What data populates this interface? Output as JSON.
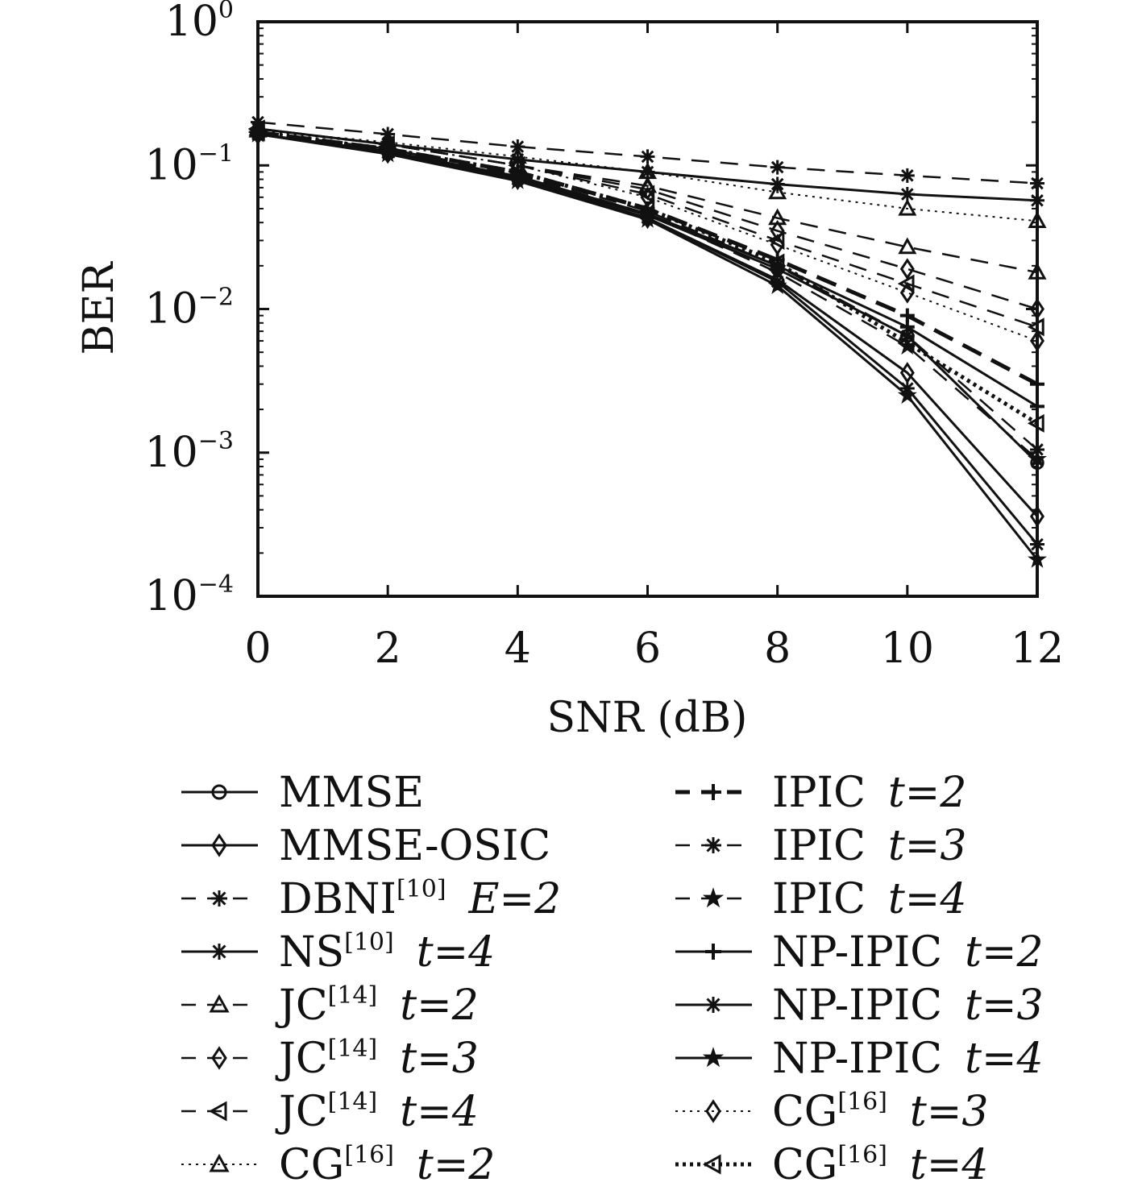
{
  "chart_data": {
    "type": "line",
    "xlabel": "SNR (dB)",
    "ylabel": "BER",
    "yscale": "log",
    "xlim": [
      0,
      12
    ],
    "ylim": [
      0.0001,
      1
    ],
    "x_ticks": [
      "0",
      "2",
      "4",
      "6",
      "8",
      "10",
      "12"
    ],
    "y_ticks": [
      {
        "base": "10",
        "exp": "0"
      },
      {
        "base": "10",
        "exp": "−1"
      },
      {
        "base": "10",
        "exp": "−2"
      },
      {
        "base": "10",
        "exp": "−3"
      },
      {
        "base": "10",
        "exp": "−4"
      }
    ],
    "grid": false,
    "legend_position": "below",
    "x": [
      0,
      2,
      4,
      6,
      8,
      10,
      12
    ],
    "series": [
      {
        "key": "mmse",
        "label": {
          "main": "MMSE",
          "sup": "",
          "param": ""
        },
        "line": "solid",
        "marker": "circle",
        "values": [
          0.165,
          0.125,
          0.082,
          0.045,
          0.019,
          0.0065,
          0.00085
        ]
      },
      {
        "key": "mmse-osic",
        "label": {
          "main": "MMSE-OSIC",
          "sup": "",
          "param": ""
        },
        "line": "solid",
        "marker": "diamond",
        "values": [
          0.165,
          0.122,
          0.08,
          0.043,
          0.016,
          0.0036,
          0.00036
        ]
      },
      {
        "key": "dbni",
        "label": {
          "main": "DBNI",
          "sup": "[10]",
          "param": "E=2"
        },
        "line": "dashed",
        "marker": "asterisk",
        "values": [
          0.2,
          0.165,
          0.135,
          0.115,
          0.097,
          0.085,
          0.075
        ]
      },
      {
        "key": "ns",
        "label": {
          "main": "NS",
          "sup": "[10]",
          "param": "t=4"
        },
        "line": "solid",
        "marker": "asterisk",
        "values": [
          0.18,
          0.14,
          0.11,
          0.09,
          0.074,
          0.063,
          0.057
        ]
      },
      {
        "key": "jc-t2",
        "label": {
          "main": "JC",
          "sup": "[14]",
          "param": "t=2"
        },
        "line": "dashed",
        "marker": "triangle-up",
        "values": [
          0.18,
          0.14,
          0.1,
          0.072,
          0.043,
          0.027,
          0.018
        ]
      },
      {
        "key": "jc-t3",
        "label": {
          "main": "JC",
          "sup": "[14]",
          "param": "t=3"
        },
        "line": "dashed",
        "marker": "diamond",
        "values": [
          0.18,
          0.14,
          0.1,
          0.068,
          0.035,
          0.019,
          0.01
        ]
      },
      {
        "key": "jc-t4",
        "label": {
          "main": "JC",
          "sup": "[14]",
          "param": "t=4"
        },
        "line": "dashed",
        "marker": "triangle-left",
        "values": [
          0.18,
          0.14,
          0.1,
          0.063,
          0.03,
          0.015,
          0.0075
        ]
      },
      {
        "key": "cg-t2",
        "label": {
          "main": "CG",
          "sup": "[16]",
          "param": "t=2"
        },
        "line": "dotted",
        "marker": "triangle-up",
        "values": [
          0.175,
          0.145,
          0.115,
          0.09,
          0.065,
          0.05,
          0.041
        ]
      },
      {
        "key": "ipic-t2",
        "label": {
          "main": "IPIC",
          "sup": "",
          "param": "t=2"
        },
        "line": "bold-dashed",
        "marker": "plus",
        "values": [
          0.17,
          0.13,
          0.09,
          0.05,
          0.022,
          0.009,
          0.003
        ]
      },
      {
        "key": "ipic-t3",
        "label": {
          "main": "IPIC",
          "sup": "",
          "param": "t=3"
        },
        "line": "dashed",
        "marker": "asterisk",
        "values": [
          0.17,
          0.13,
          0.088,
          0.048,
          0.02,
          0.0065,
          0.00105
        ]
      },
      {
        "key": "ipic-t4",
        "label": {
          "main": "IPIC",
          "sup": "",
          "param": "t=4"
        },
        "line": "dashed",
        "marker": "star",
        "values": [
          0.17,
          0.13,
          0.086,
          0.046,
          0.018,
          0.0055,
          0.0009
        ]
      },
      {
        "key": "np-ipic-t2",
        "label": {
          "main": "NP-IPIC",
          "sup": "",
          "param": "t=2"
        },
        "line": "solid",
        "marker": "plus",
        "values": [
          0.165,
          0.125,
          0.084,
          0.046,
          0.02,
          0.0075,
          0.0021
        ]
      },
      {
        "key": "np-ipic-t3",
        "label": {
          "main": "NP-IPIC",
          "sup": "",
          "param": "t=3"
        },
        "line": "solid",
        "marker": "asterisk",
        "values": [
          0.165,
          0.122,
          0.08,
          0.043,
          0.0155,
          0.0028,
          0.00023
        ]
      },
      {
        "key": "np-ipic-t4",
        "label": {
          "main": "NP-IPIC",
          "sup": "",
          "param": "t=4"
        },
        "line": "solid",
        "marker": "star",
        "values": [
          0.165,
          0.12,
          0.078,
          0.042,
          0.0145,
          0.0025,
          0.00018
        ]
      },
      {
        "key": "cg-t3",
        "label": {
          "main": "CG",
          "sup": "[16]",
          "param": "t=3"
        },
        "line": "dotted",
        "marker": "diamond",
        "values": [
          0.175,
          0.14,
          0.1,
          0.06,
          0.028,
          0.013,
          0.006
        ]
      },
      {
        "key": "cg-t4",
        "label": {
          "main": "CG",
          "sup": "[16]",
          "param": "t=4"
        },
        "line": "bold-dotted",
        "marker": "triangle-left",
        "values": [
          0.17,
          0.13,
          0.09,
          0.05,
          0.021,
          0.0058,
          0.0016
        ]
      }
    ]
  }
}
